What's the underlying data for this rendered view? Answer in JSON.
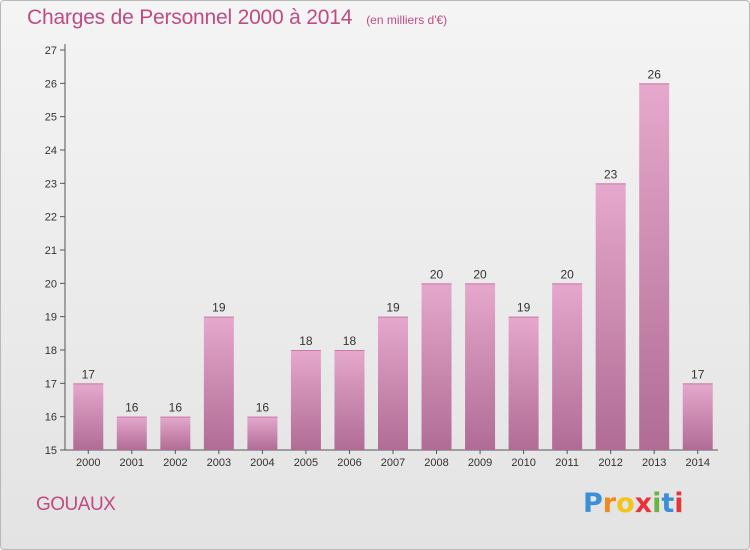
{
  "chart_data": {
    "type": "bar",
    "title": "Charges de Personnel 2000 à 2014",
    "subtitle": "(en milliers d'€)",
    "categories": [
      "2000",
      "2001",
      "2002",
      "2003",
      "2004",
      "2005",
      "2006",
      "2007",
      "2008",
      "2009",
      "2010",
      "2011",
      "2012",
      "2013",
      "2014"
    ],
    "values": [
      17,
      16,
      16,
      19,
      16,
      18,
      18,
      19,
      20,
      20,
      19,
      20,
      23,
      26,
      17
    ],
    "ylim": [
      15,
      27
    ],
    "yticks": [
      15,
      16,
      17,
      18,
      19,
      20,
      21,
      22,
      23,
      24,
      25,
      26,
      27
    ],
    "grid": false,
    "bar_color": "#d98cb8"
  },
  "commune": "GOUAUX",
  "logo": {
    "letters": [
      "P",
      "r",
      "o",
      "x",
      "i",
      "t",
      "i"
    ],
    "colors": [
      "#3a8fd8",
      "#f08a1c",
      "#f5c419",
      "#e8333a",
      "#6db33f",
      "#3a8fd8",
      "#e8333a"
    ]
  }
}
